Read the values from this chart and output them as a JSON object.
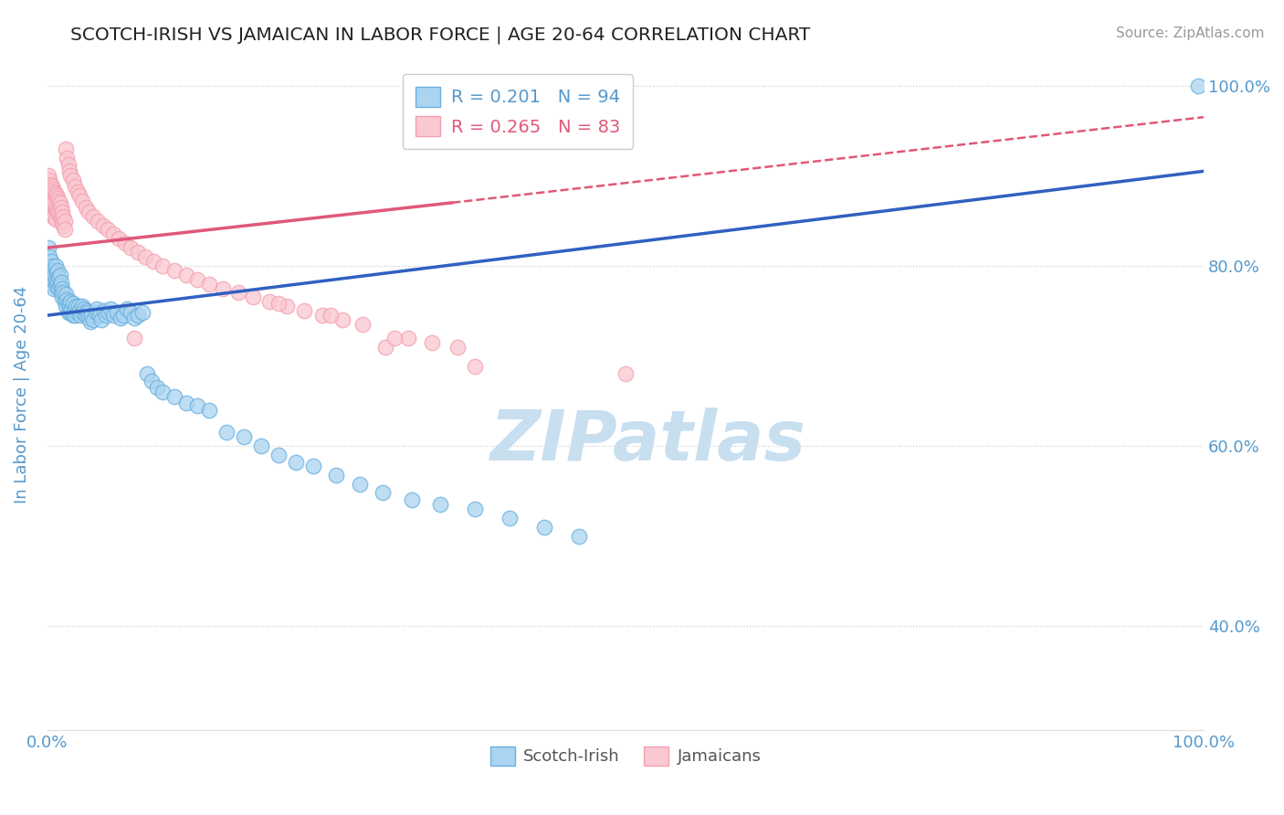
{
  "title": "SCOTCH-IRISH VS JAMAICAN IN LABOR FORCE | AGE 20-64 CORRELATION CHART",
  "source": "Source: ZipAtlas.com",
  "ylabel": "In Labor Force | Age 20-64",
  "xlim": [
    0,
    1.0
  ],
  "ylim": [
    0.285,
    1.03
  ],
  "x_ticks": [
    0.0,
    1.0
  ],
  "x_tick_labels": [
    "0.0%",
    "100.0%"
  ],
  "y_ticks": [
    0.4,
    0.6,
    0.8,
    1.0
  ],
  "y_tick_labels": [
    "40.0%",
    "60.0%",
    "80.0%",
    "100.0%"
  ],
  "legend_labels_bottom": [
    "Scotch-Irish",
    "Jamaicans"
  ],
  "blue_color": "#6ab0e0",
  "pink_color": "#f4a0b0",
  "blue_face": "#aad4f0",
  "pink_face": "#f9c8d0",
  "blue_line_color": "#3060c0",
  "pink_line_color": "#e05878",
  "blue_scatter": [
    [
      0.001,
      0.82
    ],
    [
      0.002,
      0.81
    ],
    [
      0.002,
      0.795
    ],
    [
      0.003,
      0.805
    ],
    [
      0.003,
      0.79
    ],
    [
      0.004,
      0.8
    ],
    [
      0.004,
      0.78
    ],
    [
      0.005,
      0.795
    ],
    [
      0.005,
      0.785
    ],
    [
      0.006,
      0.79
    ],
    [
      0.006,
      0.775
    ],
    [
      0.007,
      0.8
    ],
    [
      0.007,
      0.785
    ],
    [
      0.008,
      0.792
    ],
    [
      0.008,
      0.778
    ],
    [
      0.009,
      0.795
    ],
    [
      0.009,
      0.782
    ],
    [
      0.01,
      0.788
    ],
    [
      0.01,
      0.775
    ],
    [
      0.011,
      0.79
    ],
    [
      0.011,
      0.778
    ],
    [
      0.012,
      0.782
    ],
    [
      0.012,
      0.77
    ],
    [
      0.013,
      0.775
    ],
    [
      0.013,
      0.765
    ],
    [
      0.014,
      0.77
    ],
    [
      0.015,
      0.76
    ],
    [
      0.016,
      0.768
    ],
    [
      0.016,
      0.755
    ],
    [
      0.017,
      0.762
    ],
    [
      0.018,
      0.758
    ],
    [
      0.018,
      0.748
    ],
    [
      0.019,
      0.755
    ],
    [
      0.02,
      0.76
    ],
    [
      0.02,
      0.748
    ],
    [
      0.021,
      0.752
    ],
    [
      0.022,
      0.758
    ],
    [
      0.022,
      0.745
    ],
    [
      0.023,
      0.75
    ],
    [
      0.024,
      0.745
    ],
    [
      0.025,
      0.755
    ],
    [
      0.026,
      0.748
    ],
    [
      0.027,
      0.755
    ],
    [
      0.028,
      0.75
    ],
    [
      0.029,
      0.745
    ],
    [
      0.03,
      0.755
    ],
    [
      0.031,
      0.748
    ],
    [
      0.032,
      0.752
    ],
    [
      0.033,
      0.745
    ],
    [
      0.034,
      0.75
    ],
    [
      0.035,
      0.748
    ],
    [
      0.036,
      0.742
    ],
    [
      0.037,
      0.738
    ],
    [
      0.038,
      0.745
    ],
    [
      0.04,
      0.74
    ],
    [
      0.042,
      0.748
    ],
    [
      0.043,
      0.752
    ],
    [
      0.045,
      0.745
    ],
    [
      0.047,
      0.74
    ],
    [
      0.049,
      0.75
    ],
    [
      0.051,
      0.745
    ],
    [
      0.053,
      0.748
    ],
    [
      0.055,
      0.752
    ],
    [
      0.057,
      0.745
    ],
    [
      0.06,
      0.748
    ],
    [
      0.063,
      0.742
    ],
    [
      0.066,
      0.745
    ],
    [
      0.069,
      0.752
    ],
    [
      0.072,
      0.748
    ],
    [
      0.075,
      0.742
    ],
    [
      0.078,
      0.745
    ],
    [
      0.082,
      0.748
    ],
    [
      0.086,
      0.68
    ],
    [
      0.09,
      0.672
    ],
    [
      0.095,
      0.665
    ],
    [
      0.1,
      0.66
    ],
    [
      0.11,
      0.655
    ],
    [
      0.12,
      0.648
    ],
    [
      0.13,
      0.645
    ],
    [
      0.14,
      0.64
    ],
    [
      0.155,
      0.615
    ],
    [
      0.17,
      0.61
    ],
    [
      0.185,
      0.6
    ],
    [
      0.2,
      0.59
    ],
    [
      0.215,
      0.582
    ],
    [
      0.23,
      0.578
    ],
    [
      0.25,
      0.568
    ],
    [
      0.27,
      0.558
    ],
    [
      0.29,
      0.548
    ],
    [
      0.315,
      0.54
    ],
    [
      0.34,
      0.535
    ],
    [
      0.37,
      0.53
    ],
    [
      0.4,
      0.52
    ],
    [
      0.43,
      0.51
    ],
    [
      0.46,
      0.5
    ],
    [
      0.995,
      1.0
    ]
  ],
  "pink_scatter": [
    [
      0.001,
      0.9
    ],
    [
      0.001,
      0.862
    ],
    [
      0.002,
      0.895
    ],
    [
      0.002,
      0.875
    ],
    [
      0.002,
      0.858
    ],
    [
      0.003,
      0.89
    ],
    [
      0.003,
      0.878
    ],
    [
      0.003,
      0.862
    ],
    [
      0.004,
      0.888
    ],
    [
      0.004,
      0.872
    ],
    [
      0.004,
      0.858
    ],
    [
      0.005,
      0.885
    ],
    [
      0.005,
      0.87
    ],
    [
      0.005,
      0.855
    ],
    [
      0.006,
      0.882
    ],
    [
      0.006,
      0.868
    ],
    [
      0.006,
      0.855
    ],
    [
      0.007,
      0.88
    ],
    [
      0.007,
      0.865
    ],
    [
      0.007,
      0.852
    ],
    [
      0.008,
      0.878
    ],
    [
      0.008,
      0.862
    ],
    [
      0.009,
      0.875
    ],
    [
      0.009,
      0.86
    ],
    [
      0.01,
      0.872
    ],
    [
      0.01,
      0.858
    ],
    [
      0.011,
      0.87
    ],
    [
      0.011,
      0.855
    ],
    [
      0.012,
      0.865
    ],
    [
      0.012,
      0.852
    ],
    [
      0.013,
      0.86
    ],
    [
      0.013,
      0.848
    ],
    [
      0.014,
      0.855
    ],
    [
      0.014,
      0.845
    ],
    [
      0.015,
      0.85
    ],
    [
      0.015,
      0.84
    ],
    [
      0.016,
      0.93
    ],
    [
      0.017,
      0.92
    ],
    [
      0.018,
      0.912
    ],
    [
      0.019,
      0.905
    ],
    [
      0.02,
      0.9
    ],
    [
      0.022,
      0.895
    ],
    [
      0.024,
      0.888
    ],
    [
      0.026,
      0.882
    ],
    [
      0.028,
      0.878
    ],
    [
      0.03,
      0.872
    ],
    [
      0.033,
      0.865
    ],
    [
      0.036,
      0.86
    ],
    [
      0.04,
      0.855
    ],
    [
      0.044,
      0.85
    ],
    [
      0.048,
      0.845
    ],
    [
      0.052,
      0.84
    ],
    [
      0.057,
      0.835
    ],
    [
      0.062,
      0.83
    ],
    [
      0.067,
      0.825
    ],
    [
      0.072,
      0.82
    ],
    [
      0.078,
      0.815
    ],
    [
      0.085,
      0.81
    ],
    [
      0.092,
      0.805
    ],
    [
      0.1,
      0.8
    ],
    [
      0.11,
      0.795
    ],
    [
      0.12,
      0.79
    ],
    [
      0.13,
      0.785
    ],
    [
      0.14,
      0.78
    ],
    [
      0.152,
      0.775
    ],
    [
      0.165,
      0.77
    ],
    [
      0.178,
      0.765
    ],
    [
      0.192,
      0.76
    ],
    [
      0.207,
      0.755
    ],
    [
      0.222,
      0.75
    ],
    [
      0.238,
      0.745
    ],
    [
      0.255,
      0.74
    ],
    [
      0.273,
      0.735
    ],
    [
      0.292,
      0.71
    ],
    [
      0.312,
      0.72
    ],
    [
      0.333,
      0.715
    ],
    [
      0.355,
      0.71
    ],
    [
      0.37,
      0.688
    ],
    [
      0.3,
      0.72
    ],
    [
      0.5,
      0.68
    ],
    [
      0.075,
      0.72
    ],
    [
      0.2,
      0.758
    ],
    [
      0.245,
      0.745
    ]
  ],
  "blue_line": {
    "x0": 0.0,
    "y0": 0.745,
    "x1": 1.0,
    "y1": 0.905
  },
  "pink_line_solid": {
    "x0": 0.0,
    "y0": 0.82,
    "x1": 0.35,
    "y1": 0.87
  },
  "pink_line_dashed": {
    "x0": 0.35,
    "y0": 0.87,
    "x1": 1.0,
    "y1": 0.965
  },
  "watermark": "ZIPatlas",
  "watermark_color": "#c8dff0",
  "background_color": "#ffffff",
  "grid_color": "#cccccc",
  "title_color": "#333333",
  "axis_label_color": "#5599cc",
  "tick_color": "#5599cc"
}
